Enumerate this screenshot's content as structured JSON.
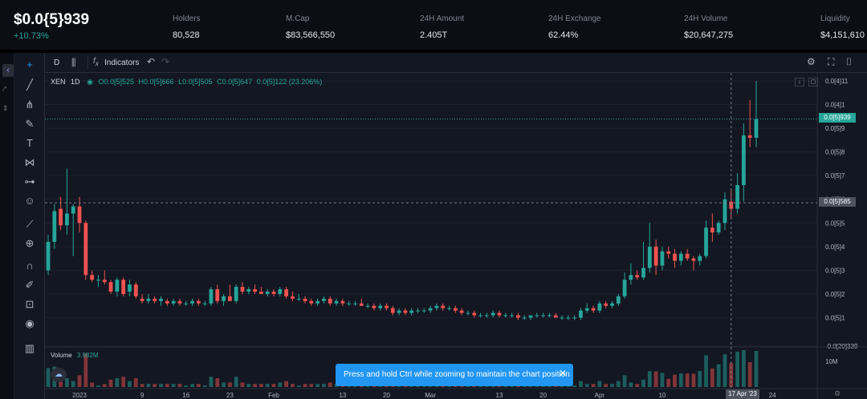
{
  "stats": {
    "price": "$0.0{5}939",
    "change": "+10.73%",
    "items": [
      {
        "label": "Holders",
        "value": "80,528"
      },
      {
        "label": "M.Cap",
        "value": "$83,566,550"
      },
      {
        "label": "24H Amount",
        "value": "2.405T"
      },
      {
        "label": "24H Exchange",
        "value": "62.44%"
      },
      {
        "label": "24H Volume",
        "value": "$20,647,275"
      },
      {
        "label": "Liquidity",
        "value": "$4,151,610"
      }
    ]
  },
  "toolbar": {
    "interval": "D",
    "indicators": "Indicators"
  },
  "legend": {
    "symbol": "XEN",
    "interval": "1D",
    "open": "O0.0[5]525",
    "high": "H0.0[5]666",
    "low": "L0.0[5]505",
    "close": "C0.0[5]647",
    "change": "0.0[5]122 (23.206%)"
  },
  "volume": {
    "label": "Volume",
    "value": "3.982M",
    "axis_label": "10M"
  },
  "toast": {
    "text": "Press and hold Ctrl while zooming to maintain the chart position"
  },
  "price_axis": [
    "0.0[4]11",
    "0.0[4]1",
    "0.0[5]9",
    "0.0[5]8",
    "0.0[5]7",
    "0.0[5]6",
    "0.0[5]5",
    "0.0[5]4",
    "0.0[5]3",
    "0.0[5]2",
    "0.0[5]1",
    "-0.0[20]339"
  ],
  "current_price_label": "0.0[5]939",
  "crosshair_price_label": "0.0[5]585",
  "time_axis": [
    "2023",
    "9",
    "16",
    "23",
    "Feb",
    "13",
    "20",
    "Mar",
    "13",
    "20",
    "Apr",
    "10",
    "24"
  ],
  "crosshair_date": "17 Apr '23",
  "colors": {
    "up": "#26a69a",
    "down": "#ef5350",
    "bg": "#131722",
    "accent": "#2196f3"
  },
  "chart_data": {
    "type": "candlestick",
    "symbol": "XEN",
    "interval": "1D",
    "y_unit": "price in units of 1e-5",
    "ylim": [
      0,
      11
    ],
    "candles": [
      [
        3.0,
        4.5,
        2.8,
        4.2
      ],
      [
        4.2,
        5.8,
        3.9,
        5.5
      ],
      [
        5.6,
        6.1,
        4.7,
        4.9
      ],
      [
        4.9,
        7.3,
        4.5,
        5.4
      ],
      [
        5.4,
        5.8,
        3.6,
        5.7
      ],
      [
        5.7,
        6.1,
        4.6,
        5.0
      ],
      [
        5.0,
        5.1,
        2.6,
        2.8
      ],
      [
        2.8,
        3.0,
        2.5,
        2.6
      ],
      [
        2.6,
        2.8,
        2.3,
        2.6
      ],
      [
        2.6,
        3.0,
        2.4,
        2.5
      ],
      [
        2.5,
        2.6,
        2.0,
        2.1
      ],
      [
        2.1,
        2.7,
        1.9,
        2.6
      ],
      [
        2.6,
        2.7,
        1.9,
        2.0
      ],
      [
        2.1,
        2.6,
        1.9,
        2.4
      ],
      [
        2.4,
        2.5,
        1.8,
        1.9
      ],
      [
        1.8,
        2.0,
        1.6,
        1.7
      ],
      [
        1.7,
        2.0,
        1.6,
        1.8
      ],
      [
        1.8,
        1.9,
        1.6,
        1.7
      ],
      [
        1.7,
        1.9,
        1.5,
        1.8
      ],
      [
        1.7,
        1.8,
        1.5,
        1.6
      ],
      [
        1.6,
        1.8,
        1.5,
        1.7
      ],
      [
        1.7,
        1.8,
        1.5,
        1.6
      ],
      [
        1.6,
        1.7,
        1.5,
        1.6
      ],
      [
        1.6,
        1.8,
        1.5,
        1.7
      ],
      [
        1.7,
        1.8,
        1.5,
        1.6
      ],
      [
        1.6,
        1.7,
        1.5,
        1.6
      ],
      [
        1.6,
        2.3,
        1.5,
        2.2
      ],
      [
        2.2,
        2.4,
        1.6,
        1.7
      ],
      [
        1.7,
        2.0,
        1.5,
        1.9
      ],
      [
        1.9,
        2.4,
        1.8,
        1.7
      ],
      [
        1.7,
        2.4,
        1.6,
        2.3
      ],
      [
        2.3,
        2.5,
        2.0,
        2.1
      ],
      [
        2.1,
        2.3,
        2.0,
        2.2
      ],
      [
        2.2,
        2.4,
        2.0,
        2.1
      ],
      [
        2.1,
        2.3,
        2.0,
        2.0
      ],
      [
        2.0,
        2.2,
        1.9,
        2.1
      ],
      [
        2.1,
        2.2,
        1.9,
        2.0
      ],
      [
        2.0,
        2.3,
        1.9,
        2.2
      ],
      [
        2.2,
        2.3,
        1.8,
        1.9
      ],
      [
        1.9,
        2.1,
        1.7,
        1.8
      ],
      [
        1.8,
        2.0,
        1.7,
        1.8
      ],
      [
        1.8,
        1.9,
        1.6,
        1.7
      ],
      [
        1.7,
        1.8,
        1.5,
        1.6
      ],
      [
        1.6,
        1.8,
        1.5,
        1.7
      ],
      [
        1.7,
        1.9,
        1.6,
        1.8
      ],
      [
        1.8,
        1.9,
        1.5,
        1.6
      ],
      [
        1.6,
        1.8,
        1.5,
        1.7
      ],
      [
        1.7,
        1.8,
        1.5,
        1.6
      ],
      [
        1.6,
        1.7,
        1.5,
        1.6
      ],
      [
        1.6,
        1.7,
        1.5,
        1.6
      ],
      [
        1.6,
        1.8,
        1.5,
        1.5
      ],
      [
        1.5,
        1.6,
        1.4,
        1.5
      ],
      [
        1.5,
        1.6,
        1.3,
        1.4
      ],
      [
        1.4,
        1.6,
        1.3,
        1.5
      ],
      [
        1.5,
        1.6,
        1.3,
        1.4
      ],
      [
        1.4,
        1.5,
        1.1,
        1.2
      ],
      [
        1.2,
        1.4,
        1.1,
        1.3
      ],
      [
        1.3,
        1.4,
        1.1,
        1.2
      ],
      [
        1.2,
        1.4,
        1.1,
        1.3
      ],
      [
        1.3,
        1.4,
        1.2,
        1.3
      ],
      [
        1.3,
        1.4,
        1.2,
        1.3
      ],
      [
        1.3,
        1.5,
        1.2,
        1.4
      ],
      [
        1.4,
        1.6,
        1.3,
        1.5
      ],
      [
        1.5,
        1.6,
        1.3,
        1.4
      ],
      [
        1.4,
        1.5,
        1.3,
        1.4
      ],
      [
        1.4,
        1.5,
        1.2,
        1.3
      ],
      [
        1.3,
        1.4,
        1.1,
        1.2
      ],
      [
        1.2,
        1.3,
        1.1,
        1.2
      ],
      [
        1.2,
        1.3,
        1.0,
        1.1
      ],
      [
        1.1,
        1.2,
        1.0,
        1.1
      ],
      [
        1.1,
        1.2,
        1.0,
        1.1
      ],
      [
        1.1,
        1.3,
        1.0,
        1.2
      ],
      [
        1.2,
        1.3,
        1.0,
        1.1
      ],
      [
        1.1,
        1.2,
        1.0,
        1.1
      ],
      [
        1.1,
        1.2,
        1.0,
        1.1
      ],
      [
        1.1,
        1.2,
        0.9,
        1.0
      ],
      [
        1.0,
        1.1,
        0.9,
        1.0
      ],
      [
        1.0,
        1.1,
        0.9,
        1.1
      ],
      [
        1.1,
        1.2,
        1.0,
        1.1
      ],
      [
        1.1,
        1.2,
        1.0,
        1.1
      ],
      [
        1.1,
        1.2,
        1.0,
        1.1
      ],
      [
        1.1,
        1.2,
        1.0,
        1.0
      ],
      [
        1.0,
        1.1,
        0.9,
        1.0
      ],
      [
        1.0,
        1.1,
        0.9,
        1.0
      ],
      [
        1.0,
        1.1,
        0.9,
        1.0
      ],
      [
        1.0,
        1.4,
        0.9,
        1.3
      ],
      [
        1.3,
        1.6,
        1.2,
        1.4
      ],
      [
        1.4,
        1.5,
        1.2,
        1.3
      ],
      [
        1.3,
        1.7,
        1.2,
        1.6
      ],
      [
        1.6,
        1.7,
        1.4,
        1.5
      ],
      [
        1.5,
        1.7,
        1.4,
        1.6
      ],
      [
        1.6,
        2.0,
        1.5,
        1.9
      ],
      [
        1.9,
        2.9,
        1.8,
        2.6
      ],
      [
        2.6,
        3.3,
        2.4,
        2.8
      ],
      [
        2.8,
        3.0,
        2.6,
        2.7
      ],
      [
        2.7,
        4.2,
        2.6,
        3.1
      ],
      [
        3.1,
        5.0,
        2.9,
        4.0
      ],
      [
        4.0,
        4.3,
        2.8,
        3.2
      ],
      [
        3.2,
        4.0,
        3.0,
        3.8
      ],
      [
        3.8,
        4.0,
        3.5,
        3.7
      ],
      [
        3.7,
        3.9,
        3.1,
        3.4
      ],
      [
        3.4,
        3.8,
        3.2,
        3.7
      ],
      [
        3.7,
        3.9,
        3.4,
        3.5
      ],
      [
        3.5,
        3.6,
        3.0,
        3.4
      ],
      [
        3.4,
        3.7,
        3.2,
        3.6
      ],
      [
        3.6,
        5.1,
        3.5,
        4.8
      ],
      [
        4.8,
        5.4,
        4.2,
        4.6
      ],
      [
        4.6,
        5.1,
        4.5,
        5.0
      ],
      [
        5.0,
        6.3,
        4.7,
        6.0
      ],
      [
        5.9,
        6.4,
        5.2,
        5.6
      ],
      [
        5.6,
        7.1,
        5.4,
        6.6
      ],
      [
        6.6,
        9.2,
        5.9,
        8.7
      ],
      [
        8.7,
        10.2,
        8.2,
        8.6
      ],
      [
        8.6,
        11.0,
        8.2,
        9.39
      ]
    ]
  }
}
